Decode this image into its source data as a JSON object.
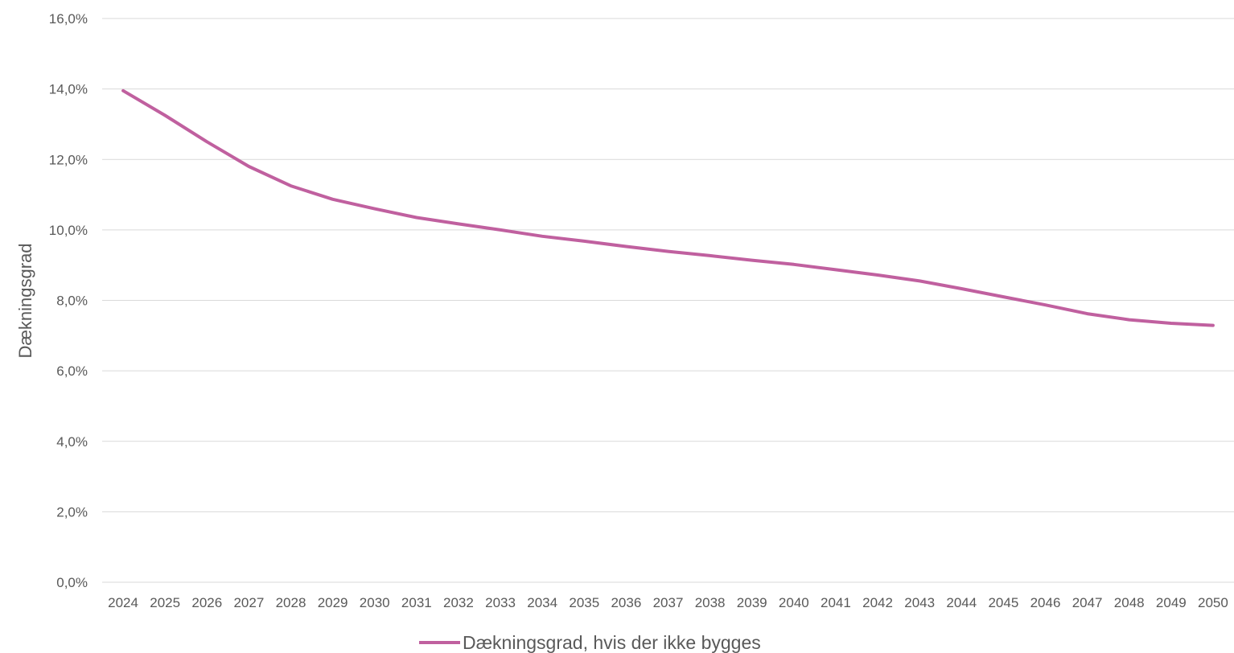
{
  "chart_data": {
    "type": "line",
    "title": "",
    "xlabel": "",
    "ylabel": "Dækningsgrad",
    "categories": [
      "2024",
      "2025",
      "2026",
      "2027",
      "2028",
      "2029",
      "2030",
      "2031",
      "2032",
      "2033",
      "2034",
      "2035",
      "2036",
      "2037",
      "2038",
      "2039",
      "2040",
      "2041",
      "2042",
      "2043",
      "2044",
      "2045",
      "2046",
      "2047",
      "2048",
      "2049",
      "2050"
    ],
    "y_ticks": [
      "0,0%",
      "2,0%",
      "4,0%",
      "6,0%",
      "8,0%",
      "10,0%",
      "12,0%",
      "14,0%",
      "16,0%"
    ],
    "ylim": [
      0,
      16
    ],
    "grid": true,
    "legend_position": "bottom",
    "series": [
      {
        "name": "Dækningsgrad, hvis der ikke bygges",
        "color": "#c0609f",
        "values": [
          13.95,
          13.25,
          12.5,
          11.8,
          11.25,
          10.87,
          10.6,
          10.35,
          10.17,
          10.0,
          9.82,
          9.68,
          9.53,
          9.39,
          9.27,
          9.14,
          9.02,
          8.87,
          8.72,
          8.55,
          8.33,
          8.1,
          7.87,
          7.62,
          7.45,
          7.35,
          7.29
        ]
      }
    ]
  }
}
